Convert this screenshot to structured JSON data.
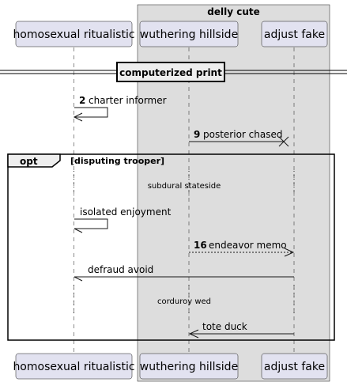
{
  "box": {
    "title": "delly cute",
    "color": "#dddddd"
  },
  "participants": [
    {
      "id": "p1",
      "label": "homosexual ritualistic"
    },
    {
      "id": "p2",
      "label": "wuthering hillside"
    },
    {
      "id": "p3",
      "label": "adjust fake"
    }
  ],
  "divider": {
    "label": "computerized print"
  },
  "messages": [
    {
      "num": "2",
      "text": "charter informer"
    },
    {
      "num": "9",
      "text": "posterior chased"
    },
    {
      "num": "",
      "text": "isolated enjoyment"
    },
    {
      "num": "16",
      "text": "endeavor memo"
    },
    {
      "num": "",
      "text": "defraud avoid"
    },
    {
      "num": "",
      "text": "tote duck"
    }
  ],
  "fragment": {
    "keyword": "opt",
    "guard": "[disputing trooper]"
  },
  "delays": [
    {
      "text": "subdural stateside"
    },
    {
      "text": "corduroy wed"
    }
  ]
}
